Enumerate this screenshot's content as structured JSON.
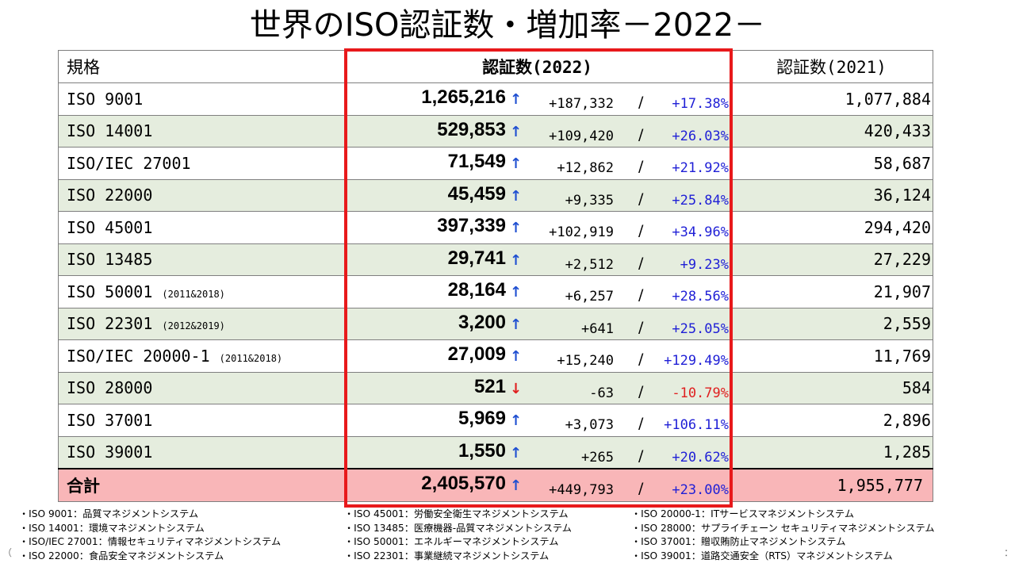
{
  "title": "世界のISO認証数・増加率－2022－",
  "table": {
    "headers": {
      "standard": "規格",
      "count_2022": "認証数(2022)",
      "count_2021": "認証数(2021)"
    },
    "rows": [
      {
        "name": "ISO 9001",
        "note": "",
        "value": "1,265,216",
        "arrow": "↑",
        "direction": "up",
        "increase": "+187,332",
        "slash": "/",
        "rate": "+17.38%",
        "prev": "1,077,884",
        "shade": "white"
      },
      {
        "name": "ISO 14001",
        "note": "",
        "value": "529,853",
        "arrow": "↑",
        "direction": "up",
        "increase": "+109,420",
        "slash": "/",
        "rate": "+26.03%",
        "prev": "420,433",
        "shade": "green"
      },
      {
        "name": "ISO/IEC 27001",
        "note": "",
        "value": "71,549",
        "arrow": "↑",
        "direction": "up",
        "increase": "+12,862",
        "slash": "/",
        "rate": "+21.92%",
        "prev": "58,687",
        "shade": "white"
      },
      {
        "name": "ISO 22000",
        "note": "",
        "value": "45,459",
        "arrow": "↑",
        "direction": "up",
        "increase": "+9,335",
        "slash": "/",
        "rate": "+25.84%",
        "prev": "36,124",
        "shade": "green"
      },
      {
        "name": "ISO 45001",
        "note": "",
        "value": "397,339",
        "arrow": "↑",
        "direction": "up",
        "increase": "+102,919",
        "slash": "/",
        "rate": "+34.96%",
        "prev": "294,420",
        "shade": "white"
      },
      {
        "name": "ISO 13485",
        "note": "",
        "value": "29,741",
        "arrow": "↑",
        "direction": "up",
        "increase": "+2,512",
        "slash": "/",
        "rate": "+9.23%",
        "prev": "27,229",
        "shade": "green"
      },
      {
        "name": "ISO 50001",
        "note": "(2011&2018)",
        "value": "28,164",
        "arrow": "↑",
        "direction": "up",
        "increase": "+6,257",
        "slash": "/",
        "rate": "+28.56%",
        "prev": "21,907",
        "shade": "white"
      },
      {
        "name": "ISO 22301",
        "note": "(2012&2019)",
        "value": "3,200",
        "arrow": "↑",
        "direction": "up",
        "increase": "+641",
        "slash": "/",
        "rate": "+25.05%",
        "prev": "2,559",
        "shade": "green"
      },
      {
        "name": "ISO/IEC 20000-1",
        "note": "(2011&2018)",
        "value": "27,009",
        "arrow": "↑",
        "direction": "up",
        "increase": "+15,240",
        "slash": "/",
        "rate": "+129.49%",
        "prev": "11,769",
        "shade": "white"
      },
      {
        "name": "ISO 28000",
        "note": "",
        "value": "521",
        "arrow": "↓",
        "direction": "down",
        "increase": "-63",
        "slash": "/",
        "rate": "-10.79%",
        "prev": "584",
        "shade": "green"
      },
      {
        "name": "ISO 37001",
        "note": "",
        "value": "5,969",
        "arrow": "↑",
        "direction": "up",
        "increase": "+3,073",
        "slash": "/",
        "rate": "+106.11%",
        "prev": "2,896",
        "shade": "white"
      },
      {
        "name": "ISO 39001",
        "note": "",
        "value": "1,550",
        "arrow": "↑",
        "direction": "up",
        "increase": "+265",
        "slash": "/",
        "rate": "+20.62%",
        "prev": "1,285",
        "shade": "green"
      }
    ],
    "total": {
      "name": "合計",
      "value": "2,405,570",
      "arrow": "↑",
      "direction": "up",
      "increase": "+449,793",
      "slash": "/",
      "rate": "+23.00%",
      "prev": "1,955,777"
    }
  },
  "legend": {
    "col1": [
      "・ISO 9001：品質マネジメントシステム",
      "・ISO 14001：環境マネジメントシステム",
      "・ISO/IEC 27001：情報セキュリティマネジメントシステム",
      "・ISO 22000：食品安全マネジメントシステム"
    ],
    "col2": [
      "・ISO 45001：労働安全衛生マネジメントシステム",
      "・ISO 13485：医療機器-品質マネジメントシステム",
      "・ISO 50001：エネルギーマネジメントシステム",
      "・ISO 22301：事業継続マネジメントシステム"
    ],
    "col3": [
      "・ISO 20000-1：ITサービスマネジメントシステム",
      "・ISO 28000：サプライチェーン セキュリティマネジメントシステム",
      "・ISO 37001：贈収賄防止マネジメントシステム",
      "・ISO 39001：道路交通安全（RTS）マネジメントシステム"
    ]
  },
  "edge_left": "（",
  "edge_right": "："
}
